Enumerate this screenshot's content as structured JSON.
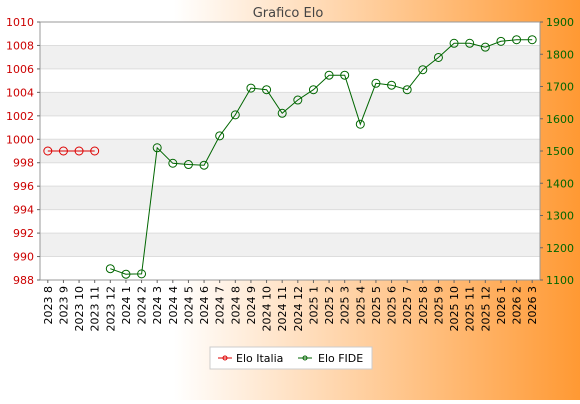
{
  "colors": {
    "background_left": "#ffffff",
    "background_right": "#ff9933",
    "series_italia": "#dd0000",
    "series_fide": "#006600",
    "left_axis": "#cc0000",
    "right_axis": "#006600",
    "title_text": "#444444",
    "band": "#f0f0f0",
    "grid": "#dddddd"
  },
  "chart_data": {
    "type": "line",
    "title": "Grafico Elo",
    "xlabel": "",
    "ylabel": "",
    "grid": true,
    "legend_placement": "bottom-center",
    "categories": [
      "2023 8",
      "2023 9",
      "2023 10",
      "2023 11",
      "2023 12",
      "2024 1",
      "2024 2",
      "2024 3",
      "2024 4",
      "2024 5",
      "2024 6",
      "2024 7",
      "2024 8",
      "2024 9",
      "2024 10",
      "2024 11",
      "2024 12",
      "2025 1",
      "2025 2",
      "2025 3",
      "2025 4",
      "2025 5",
      "2025 6",
      "2025 7",
      "2025 8",
      "2025 9",
      "2025 10",
      "2025 11",
      "2025 12",
      "2026 1",
      "2026 2",
      "2026 3"
    ],
    "y_left": {
      "ylim": [
        988,
        1010
      ],
      "ticks": [
        "988",
        "990",
        "992",
        "994",
        "996",
        "998",
        "1000",
        "1002",
        "1004",
        "1006",
        "1008",
        "1010"
      ]
    },
    "y_right": {
      "ylim": [
        1100,
        1900
      ],
      "ticks": [
        "1100",
        "1200",
        "1300",
        "1400",
        "1500",
        "1600",
        "1700",
        "1800",
        "1900"
      ]
    },
    "series": [
      {
        "name": "Elo Italia",
        "axis": "left",
        "values": [
          999,
          999,
          999,
          999,
          null,
          null,
          null,
          null,
          null,
          null,
          null,
          null,
          null,
          null,
          null,
          null,
          null,
          null,
          null,
          null,
          null,
          null,
          null,
          null,
          null,
          null,
          null,
          null,
          null,
          null,
          null,
          null
        ]
      },
      {
        "name": "Elo FIDE",
        "axis": "right",
        "values": [
          null,
          null,
          null,
          null,
          1135,
          1118,
          1119,
          1510,
          1462,
          1458,
          1456,
          1547,
          1612,
          1695,
          1690,
          1617,
          1658,
          1690,
          1735,
          1735,
          1583,
          1710,
          1704,
          1690,
          1752,
          1790,
          1834,
          1834,
          1822,
          1840,
          1845,
          1845
        ]
      }
    ]
  }
}
